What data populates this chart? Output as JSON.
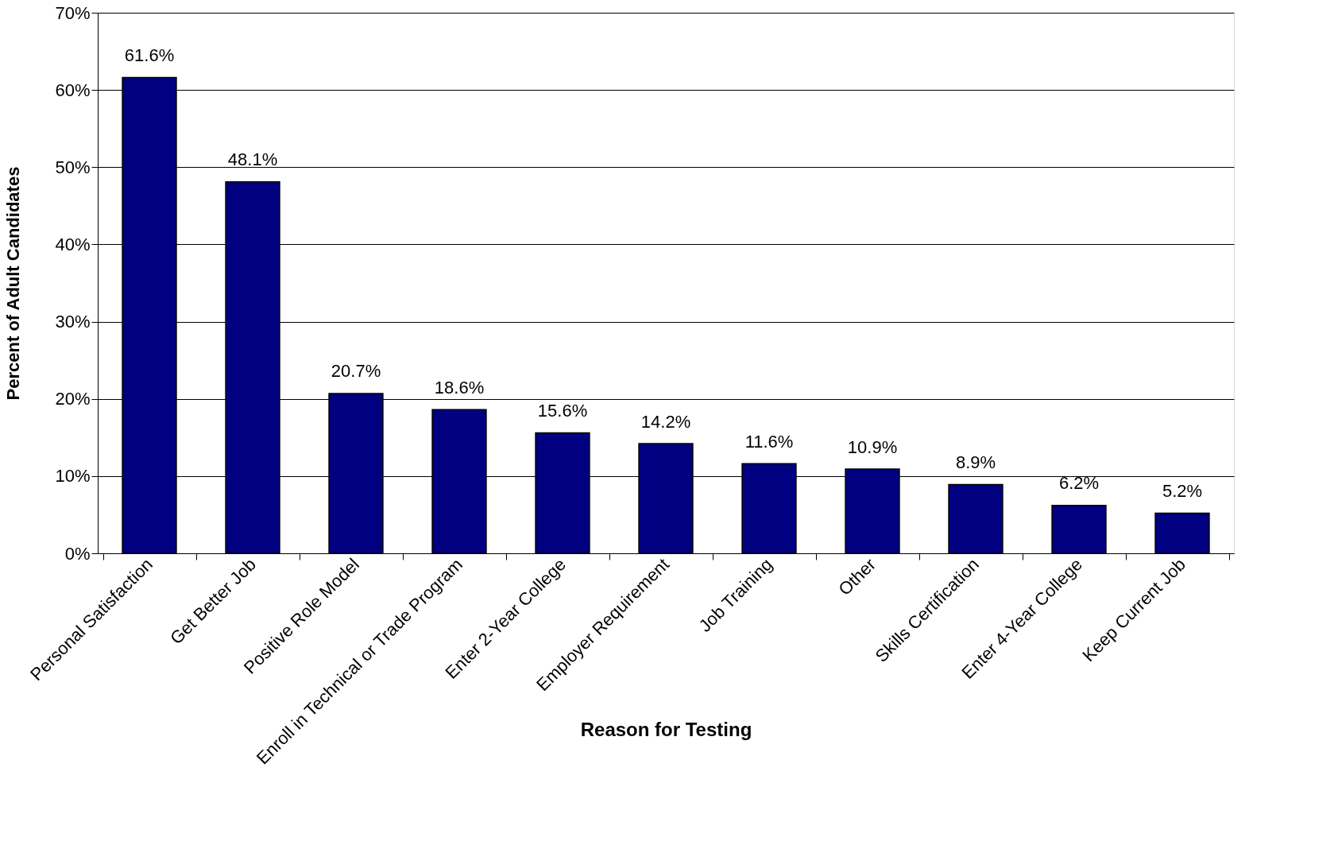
{
  "chart_data": {
    "type": "bar",
    "xlabel": "Reason for Testing",
    "ylabel": "Percent of Adult Candidates",
    "categories": [
      "Personal Satisfaction",
      "Get Better Job",
      "Positive Role Model",
      "Enroll in Technical or Trade Program",
      "Enter 2-Year College",
      "Employer Requirement",
      "Job Training",
      "Other",
      "Skills Certification",
      "Enter 4-Year College",
      "Keep Current Job"
    ],
    "values": [
      61.6,
      48.1,
      20.7,
      18.6,
      15.6,
      14.2,
      11.6,
      10.9,
      8.9,
      6.2,
      5.2
    ],
    "value_labels": [
      "61.6%",
      "48.1%",
      "20.7%",
      "18.6%",
      "15.6%",
      "14.2%",
      "11.6%",
      "10.9%",
      "8.9%",
      "6.2%",
      "5.2%"
    ],
    "color": "#000080",
    "ylim": [
      0,
      70
    ],
    "yticks": [
      {
        "value": 0,
        "label": "0%"
      },
      {
        "value": 10,
        "label": "10%"
      },
      {
        "value": 20,
        "label": "20%"
      },
      {
        "value": 30,
        "label": "30%"
      },
      {
        "value": 40,
        "label": "40%"
      },
      {
        "value": 50,
        "label": "50%"
      },
      {
        "value": 60,
        "label": "60%"
      },
      {
        "value": 70,
        "label": "70%"
      }
    ],
    "grid": "y"
  }
}
